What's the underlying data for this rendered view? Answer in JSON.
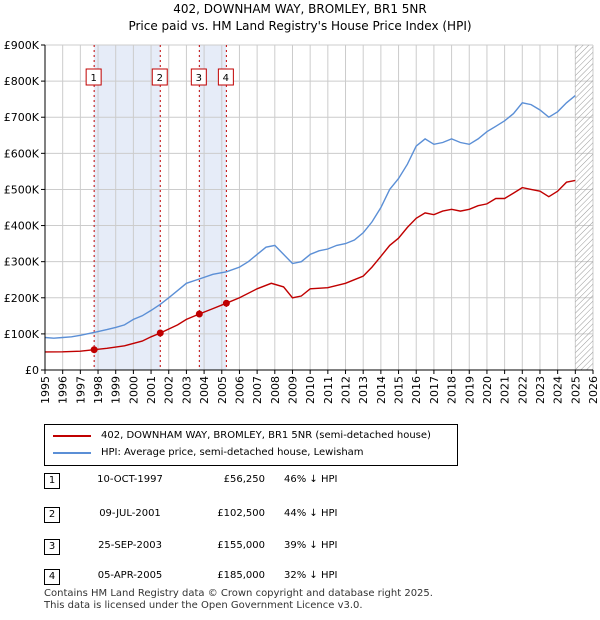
{
  "title": "402, DOWNHAM WAY, BROMLEY, BR1 5NR",
  "subtitle": "Price paid vs. HM Land Registry's House Price Index (HPI)",
  "colors": {
    "property": "#c00000",
    "hpi": "#5b8fd6",
    "shade": "#e6ecf8",
    "sale_line": "#c00000",
    "grid": "#cccccc"
  },
  "chart_data": {
    "type": "line",
    "xlim": [
      1995,
      2026
    ],
    "ylim": [
      0,
      900000
    ],
    "x_ticks": [
      "1995",
      "1996",
      "1997",
      "1998",
      "1999",
      "2000",
      "2001",
      "2002",
      "2003",
      "2004",
      "2005",
      "2006",
      "2007",
      "2008",
      "2009",
      "2010",
      "2011",
      "2012",
      "2013",
      "2014",
      "2015",
      "2016",
      "2017",
      "2018",
      "2019",
      "2020",
      "2021",
      "2022",
      "2023",
      "2024",
      "2025",
      "2026"
    ],
    "y_ticks": [
      {
        "value": 0,
        "label": "£0"
      },
      {
        "value": 100000,
        "label": "£100K"
      },
      {
        "value": 200000,
        "label": "£200K"
      },
      {
        "value": 300000,
        "label": "£300K"
      },
      {
        "value": 400000,
        "label": "£400K"
      },
      {
        "value": 500000,
        "label": "£500K"
      },
      {
        "value": 600000,
        "label": "£600K"
      },
      {
        "value": 700000,
        "label": "£700K"
      },
      {
        "value": 800000,
        "label": "£800K"
      },
      {
        "value": 900000,
        "label": "£900K"
      }
    ],
    "grid": true,
    "shaded_ranges": [
      [
        1997.78,
        2001.52
      ],
      [
        2003.73,
        2005.26
      ]
    ],
    "hatched_from": 2025.0,
    "series": [
      {
        "name": "402, DOWNHAM WAY, BROMLEY, BR1 5NR (semi-detached house)",
        "points": [
          [
            1995.0,
            50000
          ],
          [
            1996.0,
            50500
          ],
          [
            1997.0,
            52000
          ],
          [
            1997.78,
            56250
          ],
          [
            1998.5,
            60000
          ],
          [
            1999.5,
            67000
          ],
          [
            2000.5,
            80000
          ],
          [
            2001.0,
            92000
          ],
          [
            2001.52,
            102500
          ],
          [
            2002.5,
            125000
          ],
          [
            2003.0,
            140000
          ],
          [
            2003.73,
            155000
          ],
          [
            2004.5,
            170000
          ],
          [
            2005.26,
            185000
          ],
          [
            2006.0,
            200000
          ],
          [
            2007.0,
            225000
          ],
          [
            2007.8,
            240000
          ],
          [
            2008.5,
            230000
          ],
          [
            2009.0,
            200000
          ],
          [
            2009.5,
            205000
          ],
          [
            2010.0,
            225000
          ],
          [
            2011.0,
            228000
          ],
          [
            2012.0,
            240000
          ],
          [
            2012.5,
            250000
          ],
          [
            2013.0,
            260000
          ],
          [
            2013.5,
            285000
          ],
          [
            2014.0,
            315000
          ],
          [
            2014.5,
            345000
          ],
          [
            2015.0,
            365000
          ],
          [
            2015.5,
            395000
          ],
          [
            2016.0,
            420000
          ],
          [
            2016.5,
            435000
          ],
          [
            2017.0,
            430000
          ],
          [
            2017.5,
            440000
          ],
          [
            2018.0,
            445000
          ],
          [
            2018.5,
            440000
          ],
          [
            2019.0,
            445000
          ],
          [
            2019.5,
            455000
          ],
          [
            2020.0,
            460000
          ],
          [
            2020.5,
            475000
          ],
          [
            2021.0,
            475000
          ],
          [
            2021.5,
            490000
          ],
          [
            2022.0,
            505000
          ],
          [
            2022.5,
            500000
          ],
          [
            2023.0,
            495000
          ],
          [
            2023.5,
            480000
          ],
          [
            2024.0,
            495000
          ],
          [
            2024.5,
            520000
          ],
          [
            2025.0,
            525000
          ]
        ]
      },
      {
        "name": "HPI: Average price, semi-detached house, Lewisham",
        "points": [
          [
            1995.0,
            90000
          ],
          [
            1995.5,
            88000
          ],
          [
            1996.0,
            90000
          ],
          [
            1996.5,
            92000
          ],
          [
            1997.0,
            96000
          ],
          [
            1997.78,
            104000
          ],
          [
            1998.5,
            112000
          ],
          [
            1999.0,
            118000
          ],
          [
            1999.5,
            125000
          ],
          [
            2000.0,
            140000
          ],
          [
            2000.5,
            150000
          ],
          [
            2001.0,
            165000
          ],
          [
            2001.52,
            182000
          ],
          [
            2002.0,
            200000
          ],
          [
            2002.5,
            220000
          ],
          [
            2003.0,
            240000
          ],
          [
            2003.73,
            252000
          ],
          [
            2004.5,
            265000
          ],
          [
            2005.26,
            272000
          ],
          [
            2006.0,
            285000
          ],
          [
            2006.5,
            300000
          ],
          [
            2007.0,
            320000
          ],
          [
            2007.5,
            340000
          ],
          [
            2008.0,
            345000
          ],
          [
            2008.5,
            320000
          ],
          [
            2009.0,
            295000
          ],
          [
            2009.5,
            300000
          ],
          [
            2010.0,
            320000
          ],
          [
            2010.5,
            330000
          ],
          [
            2011.0,
            335000
          ],
          [
            2011.5,
            345000
          ],
          [
            2012.0,
            350000
          ],
          [
            2012.5,
            360000
          ],
          [
            2013.0,
            380000
          ],
          [
            2013.5,
            410000
          ],
          [
            2014.0,
            450000
          ],
          [
            2014.5,
            500000
          ],
          [
            2015.0,
            530000
          ],
          [
            2015.5,
            570000
          ],
          [
            2016.0,
            620000
          ],
          [
            2016.5,
            640000
          ],
          [
            2017.0,
            625000
          ],
          [
            2017.5,
            630000
          ],
          [
            2018.0,
            640000
          ],
          [
            2018.5,
            630000
          ],
          [
            2019.0,
            625000
          ],
          [
            2019.5,
            640000
          ],
          [
            2020.0,
            660000
          ],
          [
            2020.5,
            675000
          ],
          [
            2021.0,
            690000
          ],
          [
            2021.5,
            710000
          ],
          [
            2022.0,
            740000
          ],
          [
            2022.5,
            735000
          ],
          [
            2023.0,
            720000
          ],
          [
            2023.5,
            700000
          ],
          [
            2024.0,
            715000
          ],
          [
            2024.5,
            740000
          ],
          [
            2025.0,
            760000
          ]
        ]
      }
    ],
    "sales": [
      {
        "num": "1",
        "x": 1997.78,
        "y": 56250
      },
      {
        "num": "2",
        "x": 2001.52,
        "y": 102500
      },
      {
        "num": "3",
        "x": 2003.73,
        "y": 155000
      },
      {
        "num": "4",
        "x": 2005.26,
        "y": 185000
      }
    ]
  },
  "legend": {
    "property_label": "402, DOWNHAM WAY, BROMLEY, BR1 5NR (semi-detached house)",
    "hpi_label": "HPI: Average price, semi-detached house, Lewisham"
  },
  "transactions": [
    {
      "num": "1",
      "date": "10-OCT-1997",
      "price": "£56,250",
      "hpi": "46% ↓ HPI"
    },
    {
      "num": "2",
      "date": "09-JUL-2001",
      "price": "£102,500",
      "hpi": "44% ↓ HPI"
    },
    {
      "num": "3",
      "date": "25-SEP-2003",
      "price": "£155,000",
      "hpi": "39% ↓ HPI"
    },
    {
      "num": "4",
      "date": "05-APR-2005",
      "price": "£185,000",
      "hpi": "32% ↓ HPI"
    }
  ],
  "footer": {
    "line1": "Contains HM Land Registry data © Crown copyright and database right 2025.",
    "line2": "This data is licensed under the Open Government Licence v3.0."
  }
}
